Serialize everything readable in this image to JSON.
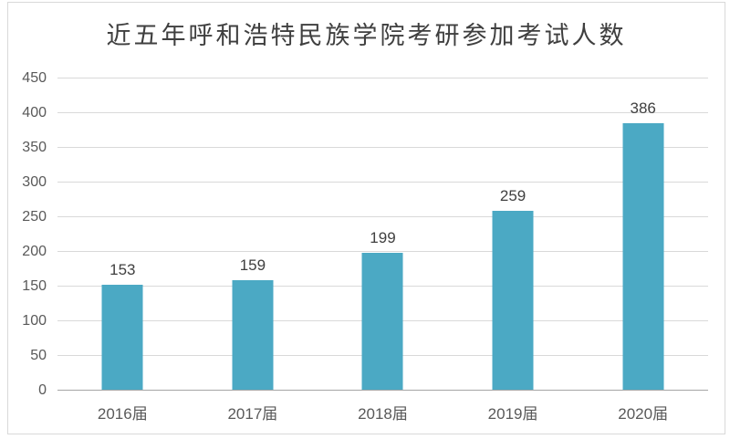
{
  "chart": {
    "title": "近五年呼和浩特民族学院考研参加考试人数"
  },
  "chart_data": {
    "type": "bar",
    "title": "近五年呼和浩特民族学院考研参加考试人数",
    "categories": [
      "2016届",
      "2017届",
      "2018届",
      "2019届",
      "2020届"
    ],
    "values": [
      153,
      159,
      199,
      259,
      386
    ],
    "data_labels": [
      "153",
      "159",
      "199",
      "259",
      "386"
    ],
    "xlabel": "",
    "ylabel": "",
    "ylim": [
      0,
      450
    ],
    "yticks": [
      0,
      50,
      100,
      150,
      200,
      250,
      300,
      350,
      400,
      450
    ],
    "grid": true,
    "legend": false,
    "colors": {
      "bar": "#4BA9C4",
      "gridline": "#D9D9D9",
      "axis_line": "#A6A6A6",
      "tick_text": "#595959",
      "category_text": "#595959",
      "data_label_text": "#404040",
      "title_text": "#3F3F3F",
      "frame_border": "#D9D9D9",
      "background": "#FFFFFF"
    }
  }
}
